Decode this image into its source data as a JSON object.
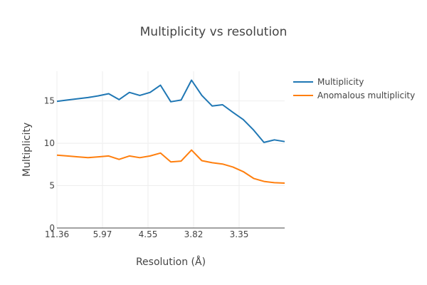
{
  "chart_data": {
    "type": "line",
    "title": "Multiplicity vs resolution",
    "xlabel": "Resolution (Å)",
    "ylabel": "Multiplicity",
    "x_tick_labels": [
      "11.36",
      "5.97",
      "4.55",
      "3.82",
      "3.35"
    ],
    "y_ticks": [
      0,
      5,
      10,
      15
    ],
    "ylim": [
      0,
      18.5
    ],
    "grid": true,
    "legend_position": "top-right",
    "series": [
      {
        "name": "Multiplicity",
        "color": "#1f77b4",
        "values": [
          14.95,
          15.1,
          15.25,
          15.4,
          15.6,
          15.85,
          15.15,
          16.0,
          15.65,
          16.0,
          16.85,
          14.9,
          15.1,
          17.45,
          15.65,
          14.4,
          14.55,
          13.65,
          12.8,
          11.55,
          10.1,
          10.4,
          10.2
        ]
      },
      {
        "name": "Anomalous multiplicity",
        "color": "#ff7f0e",
        "values": [
          8.6,
          8.5,
          8.4,
          8.3,
          8.4,
          8.5,
          8.1,
          8.5,
          8.3,
          8.5,
          8.85,
          7.8,
          7.9,
          9.2,
          7.95,
          7.7,
          7.55,
          7.2,
          6.65,
          5.85,
          5.5,
          5.35,
          5.3
        ]
      }
    ]
  }
}
